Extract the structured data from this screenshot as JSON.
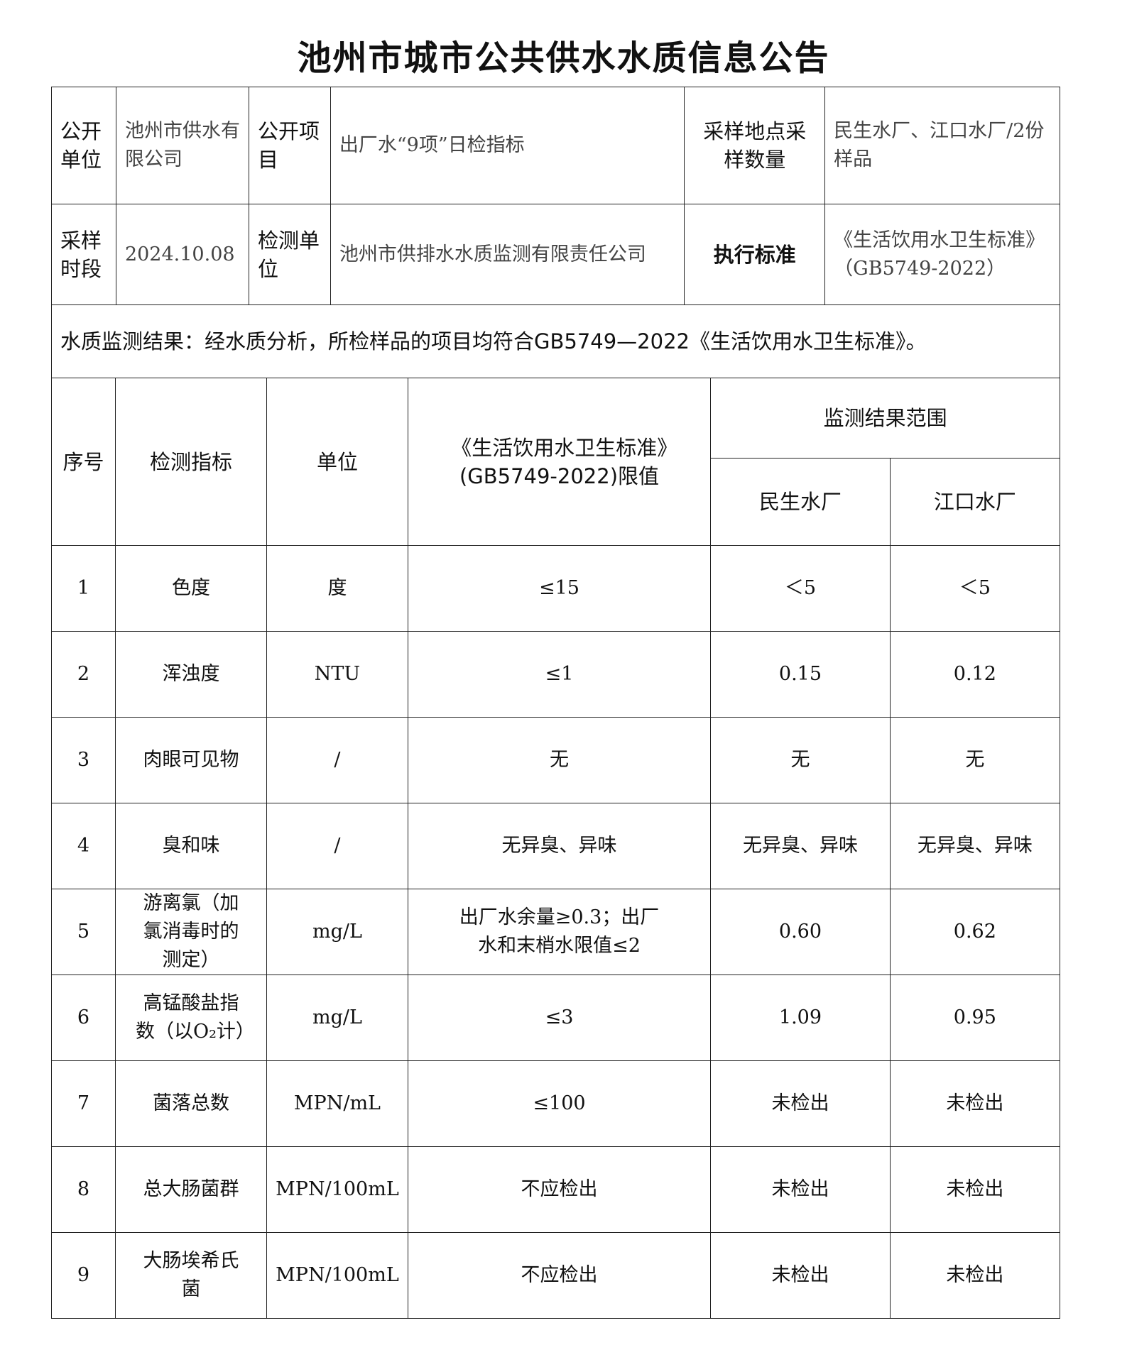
{
  "title": "池州市城市公共供水水质信息公告",
  "info": {
    "publisher_label": "公开单位",
    "publisher": "池州市供水有限公司",
    "item_label": "公开项目",
    "item": "出厂水“9项”日检指标",
    "site_label": "采样地点采样数量",
    "site": "民生水厂、江口水厂/2份样品",
    "period_label": "采样时段",
    "period": "2024.10.08",
    "lab_label": "检测单位",
    "lab": "池州市供排水水质监测有限责任公司",
    "standard_label": "执行标准",
    "standard": "《生活饮用水卫生标准》（GB5749-2022）"
  },
  "conclusion": "水质监测结果：经水质分析，所检样品的项目均符合GB5749—2022《生活饮用水卫生标准》。",
  "table": {
    "headers": {
      "no": "序号",
      "indicator": "检测指标",
      "unit": "单位",
      "limit": "《生活饮用水卫生标准》(GB5749-2022)限值",
      "range": "监测结果范围",
      "plant1": "民生水厂",
      "plant2": "江口水厂"
    },
    "rows": [
      {
        "no": "1",
        "indicator": "色度",
        "unit": "度",
        "limit": "≤15",
        "p1": "＜5",
        "p2": "＜5"
      },
      {
        "no": "2",
        "indicator": "浑浊度",
        "unit": "NTU",
        "limit": "≤1",
        "p1": "0.15",
        "p2": "0.12"
      },
      {
        "no": "3",
        "indicator": "肉眼可见物",
        "unit": "/",
        "limit": "无",
        "p1": "无",
        "p2": "无"
      },
      {
        "no": "4",
        "indicator": "臭和味",
        "unit": "/",
        "limit": "无异臭、异味",
        "p1": "无异臭、异味",
        "p2": "无异臭、异味"
      },
      {
        "no": "5",
        "indicator": "游离氯（加氯消毒时的测定）",
        "unit": "mg/L",
        "limit": "出厂水余量≥0.3；出厂水和末梢水限值≤2",
        "p1": "0.60",
        "p2": "0.62"
      },
      {
        "no": "6",
        "indicator": "高锰酸盐指数（以O₂计）",
        "unit": "mg/L",
        "limit": "≤3",
        "p1": "1.09",
        "p2": "0.95"
      },
      {
        "no": "7",
        "indicator": "菌落总数",
        "unit": "MPN/mL",
        "limit": "≤100",
        "p1": "未检出",
        "p2": "未检出"
      },
      {
        "no": "8",
        "indicator": "总大肠菌群",
        "unit": "MPN/100mL",
        "limit": "不应检出",
        "p1": "未检出",
        "p2": "未检出"
      },
      {
        "no": "9",
        "indicator": "大肠埃希氏菌",
        "unit": "MPN/100mL",
        "limit": "不应检出",
        "p1": "未检出",
        "p2": "未检出"
      }
    ]
  }
}
